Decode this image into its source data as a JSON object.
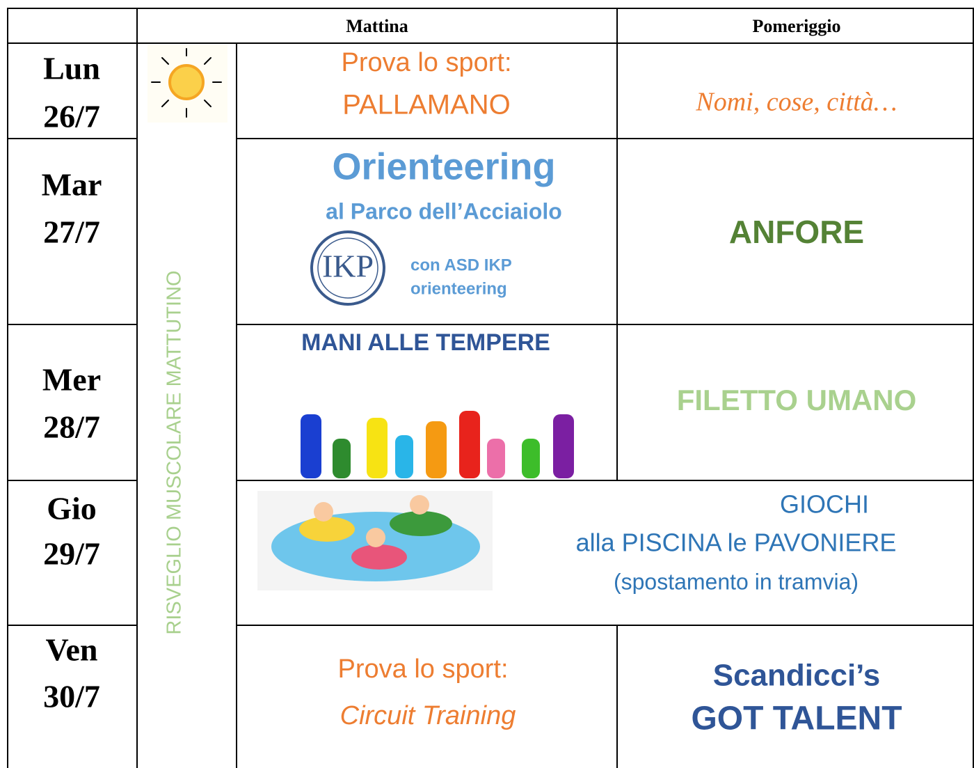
{
  "header": {
    "morning": "Mattina",
    "afternoon": "Pomeriggio"
  },
  "side_label": "RISVEGLIO MUSCOLARE MATTUTINO",
  "days": [
    {
      "day": "Lun",
      "date": "26/7",
      "morning": [
        "Prova lo sport:",
        "PALLAMANO"
      ],
      "afternoon": [
        "Nomi, cose, città…"
      ]
    },
    {
      "day": "Mar",
      "date": "27/7",
      "morning": [
        "Orienteering",
        "al Parco dell’Acciaiolo",
        "con ASD IKP",
        "orienteering"
      ],
      "logo": "IKP",
      "afternoon": [
        "ANFORE"
      ]
    },
    {
      "day": "Mer",
      "date": "28/7",
      "morning": [
        "MANI ALLE TEMPERE"
      ],
      "afternoon": [
        "FILETTO UMANO"
      ]
    },
    {
      "day": "Gio",
      "date": "29/7",
      "all_day": [
        "GIOCHI",
        "alla PISCINA le PAVONIERE",
        "(spostamento in tramvia)"
      ]
    },
    {
      "day": "Ven",
      "date": "30/7",
      "morning": [
        "Prova lo sport:",
        "Circuit Training"
      ],
      "afternoon": [
        "Scandicci’s",
        "GOT TALENT"
      ]
    }
  ]
}
